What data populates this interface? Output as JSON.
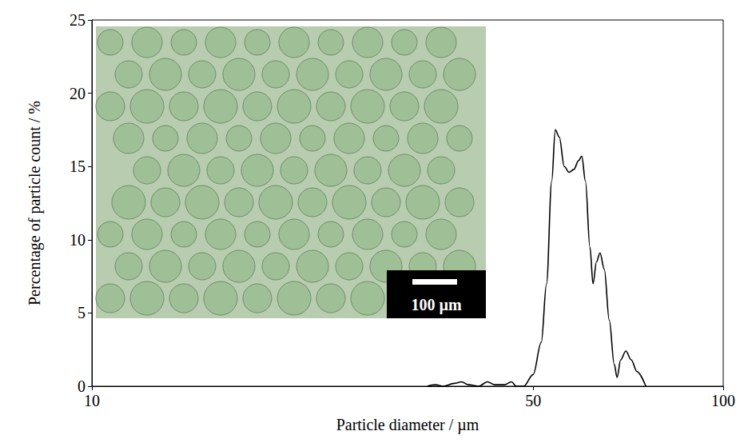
{
  "chart_data": {
    "type": "line",
    "x_label": "Particle diameter / µm",
    "y_label": "Percentage of particle count / %",
    "x": [
      34,
      35,
      36,
      37.5,
      38.5,
      39.5,
      41,
      42.3,
      43.5,
      45,
      46.2,
      47,
      48.3,
      50,
      51.5,
      52.5,
      53.5,
      54.2,
      55,
      56,
      57,
      58,
      59,
      59.7,
      60.5,
      61.5,
      62.2,
      63,
      63.8,
      64.8,
      66,
      67.2,
      67.9,
      68.8,
      70.1,
      71.5,
      73,
      75.4
    ],
    "values": [
      0,
      0.1,
      0,
      0.2,
      0.3,
      0.1,
      0,
      0.3,
      0.1,
      0.1,
      0.3,
      0,
      0,
      0.8,
      3,
      7,
      14,
      17.5,
      17,
      15,
      14.6,
      14.8,
      15.4,
      15.7,
      14,
      9.5,
      7,
      8.5,
      9.1,
      8,
      4.5,
      1.5,
      0.6,
      1.8,
      2.4,
      1.8,
      1,
      0
    ],
    "color": "#000000",
    "xlim": [
      10,
      100
    ],
    "ylim": [
      0,
      25
    ],
    "xticks": [
      10,
      50,
      100
    ],
    "yticks": [
      0,
      5,
      10,
      15,
      20,
      25
    ],
    "log": "x",
    "grid": false,
    "annotations": [
      "100 µm"
    ]
  }
}
